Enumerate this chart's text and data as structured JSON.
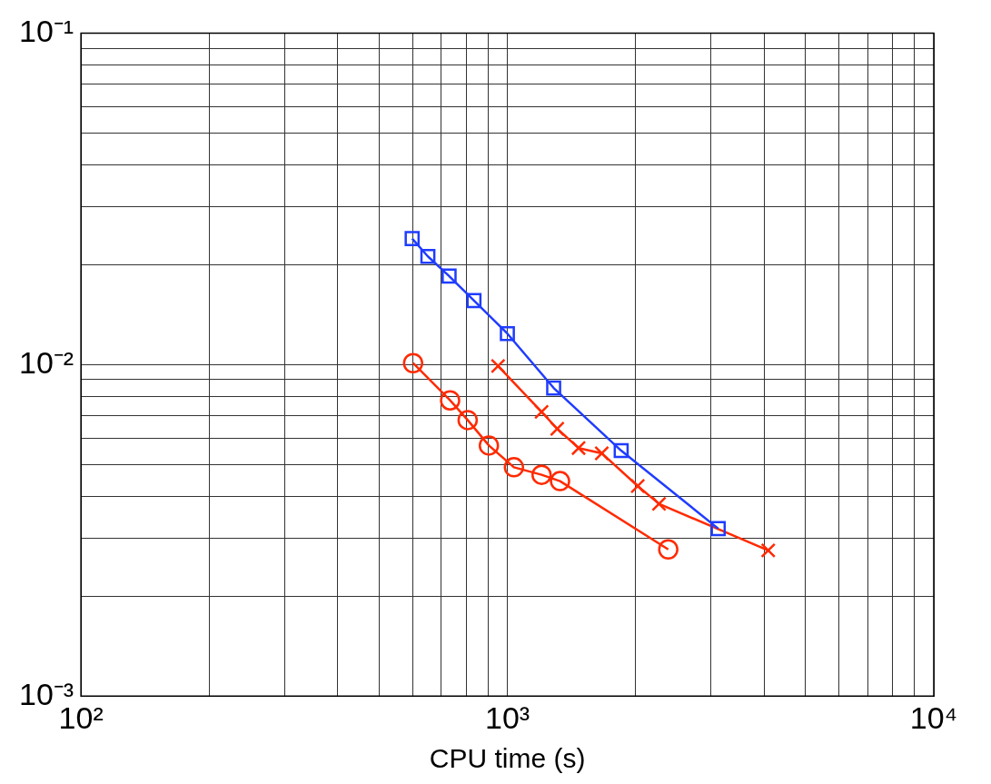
{
  "chart_data": {
    "type": "line",
    "xlabel": "CPU time (s)",
    "log": "xy",
    "grid": true,
    "xlim": [
      100,
      10000
    ],
    "ylim": [
      0.001,
      0.1
    ],
    "xticks": [
      {
        "value": 100,
        "label": "10²"
      },
      {
        "value": 200,
        "label": null
      },
      {
        "value": 300,
        "label": null
      },
      {
        "value": 400,
        "label": null
      },
      {
        "value": 500,
        "label": null
      },
      {
        "value": 600,
        "label": null
      },
      {
        "value": 700,
        "label": null
      },
      {
        "value": 800,
        "label": null
      },
      {
        "value": 900,
        "label": null
      },
      {
        "value": 1000,
        "label": "10³"
      },
      {
        "value": 2000,
        "label": null
      },
      {
        "value": 3000,
        "label": null
      },
      {
        "value": 4000,
        "label": null
      },
      {
        "value": 5000,
        "label": null
      },
      {
        "value": 6000,
        "label": null
      },
      {
        "value": 7000,
        "label": null
      },
      {
        "value": 8000,
        "label": null
      },
      {
        "value": 9000,
        "label": null
      },
      {
        "value": 10000,
        "label": "10⁴"
      }
    ],
    "yticks": [
      {
        "value": 0.001,
        "label": "10⁻³"
      },
      {
        "value": 0.002,
        "label": null
      },
      {
        "value": 0.003,
        "label": null
      },
      {
        "value": 0.004,
        "label": null
      },
      {
        "value": 0.005,
        "label": null
      },
      {
        "value": 0.006,
        "label": null
      },
      {
        "value": 0.007,
        "label": null
      },
      {
        "value": 0.008,
        "label": null
      },
      {
        "value": 0.009,
        "label": null
      },
      {
        "value": 0.01,
        "label": "10⁻²"
      },
      {
        "value": 0.02,
        "label": null
      },
      {
        "value": 0.03,
        "label": null
      },
      {
        "value": 0.04,
        "label": null
      },
      {
        "value": 0.05,
        "label": null
      },
      {
        "value": 0.06,
        "label": null
      },
      {
        "value": 0.07,
        "label": null
      },
      {
        "value": 0.08,
        "label": null
      },
      {
        "value": 0.09,
        "label": null
      },
      {
        "value": 0.1,
        "label": "10⁻¹"
      }
    ],
    "series": [
      {
        "color": "#1f3cff",
        "marker": "square",
        "x": [
          598,
          651,
          730,
          835,
          1000,
          1284,
          1849,
          3123
        ],
        "values": [
          0.024,
          0.0212,
          0.0185,
          0.0156,
          0.0124,
          0.0085,
          0.0055,
          0.0032
        ]
      },
      {
        "color": "#ff2a00",
        "marker": "cross",
        "x": [
          951,
          1203,
          1309,
          1469,
          1665,
          2022,
          2268,
          4090
        ],
        "values": [
          0.0099,
          0.0072,
          0.0064,
          0.0056,
          0.0054,
          0.0043,
          0.0038,
          0.00275
        ]
      },
      {
        "color": "#ff2a00",
        "marker": "circle",
        "x": [
          601,
          734,
          807,
          905,
          1036,
          1203,
          1329,
          2384
        ],
        "values": [
          0.0101,
          0.0078,
          0.0068,
          0.0057,
          0.0049,
          0.00465,
          0.00445,
          0.00277
        ]
      }
    ]
  }
}
